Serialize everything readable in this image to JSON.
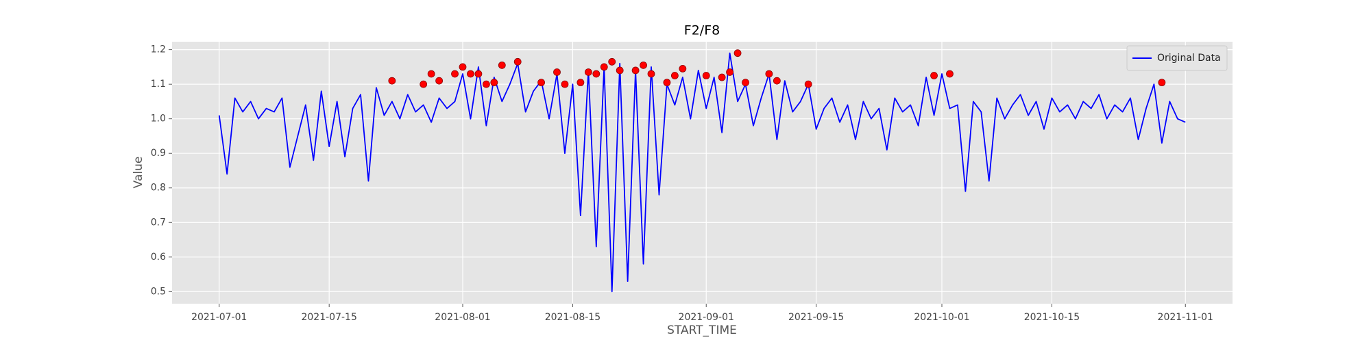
{
  "chart_data": {
    "type": "line",
    "title": "F2/F8",
    "x_label": "START_TIME",
    "y_label": "Value",
    "x": [
      "2021-07-01",
      "2021-07-02",
      "2021-07-03",
      "2021-07-04",
      "2021-07-05",
      "2021-07-06",
      "2021-07-07",
      "2021-07-08",
      "2021-07-09",
      "2021-07-10",
      "2021-07-11",
      "2021-07-12",
      "2021-07-13",
      "2021-07-14",
      "2021-07-15",
      "2021-07-16",
      "2021-07-17",
      "2021-07-18",
      "2021-07-19",
      "2021-07-20",
      "2021-07-21",
      "2021-07-22",
      "2021-07-23",
      "2021-07-24",
      "2021-07-25",
      "2021-07-26",
      "2021-07-27",
      "2021-07-28",
      "2021-07-29",
      "2021-07-30",
      "2021-07-31",
      "2021-08-01",
      "2021-08-02",
      "2021-08-03",
      "2021-08-04",
      "2021-08-05",
      "2021-08-06",
      "2021-08-07",
      "2021-08-08",
      "2021-08-09",
      "2021-08-10",
      "2021-08-11",
      "2021-08-12",
      "2021-08-13",
      "2021-08-14",
      "2021-08-15",
      "2021-08-16",
      "2021-08-17",
      "2021-08-18",
      "2021-08-19",
      "2021-08-20",
      "2021-08-21",
      "2021-08-22",
      "2021-08-23",
      "2021-08-24",
      "2021-08-25",
      "2021-08-26",
      "2021-08-27",
      "2021-08-28",
      "2021-08-29",
      "2021-08-30",
      "2021-08-31",
      "2021-09-01",
      "2021-09-02",
      "2021-09-03",
      "2021-09-04",
      "2021-09-05",
      "2021-09-06",
      "2021-09-07",
      "2021-09-08",
      "2021-09-09",
      "2021-09-10",
      "2021-09-11",
      "2021-09-12",
      "2021-09-13",
      "2021-09-14",
      "2021-09-15",
      "2021-09-16",
      "2021-09-17",
      "2021-09-18",
      "2021-09-19",
      "2021-09-20",
      "2021-09-21",
      "2021-09-22",
      "2021-09-23",
      "2021-09-24",
      "2021-09-25",
      "2021-09-26",
      "2021-09-27",
      "2021-09-28",
      "2021-09-29",
      "2021-09-30",
      "2021-10-01",
      "2021-10-02",
      "2021-10-03",
      "2021-10-04",
      "2021-10-05",
      "2021-10-06",
      "2021-10-07",
      "2021-10-08",
      "2021-10-09",
      "2021-10-10",
      "2021-10-11",
      "2021-10-12",
      "2021-10-13",
      "2021-10-14",
      "2021-10-15",
      "2021-10-16",
      "2021-10-17",
      "2021-10-18",
      "2021-10-19",
      "2021-10-20",
      "2021-10-21",
      "2021-10-22",
      "2021-10-23",
      "2021-10-24",
      "2021-10-25",
      "2021-10-26",
      "2021-10-27",
      "2021-10-28",
      "2021-10-29",
      "2021-10-30",
      "2021-10-31",
      "2021-11-01"
    ],
    "series": [
      {
        "name": "Original Data",
        "color": "#0000ff",
        "values": [
          1.01,
          0.84,
          1.06,
          1.02,
          1.05,
          1.0,
          1.03,
          1.02,
          1.06,
          0.86,
          0.95,
          1.04,
          0.88,
          1.08,
          0.92,
          1.05,
          0.89,
          1.03,
          1.07,
          0.82,
          1.09,
          1.01,
          1.05,
          1.0,
          1.07,
          1.02,
          1.04,
          0.99,
          1.06,
          1.03,
          1.05,
          1.13,
          1.0,
          1.15,
          0.98,
          1.12,
          1.05,
          1.1,
          1.16,
          1.02,
          1.08,
          1.11,
          1.0,
          1.13,
          0.9,
          1.1,
          0.72,
          1.14,
          0.63,
          1.15,
          0.5,
          1.16,
          0.53,
          1.14,
          0.58,
          1.15,
          0.78,
          1.1,
          1.04,
          1.12,
          1.0,
          1.14,
          1.03,
          1.12,
          0.96,
          1.19,
          1.05,
          1.1,
          0.98,
          1.06,
          1.13,
          0.94,
          1.11,
          1.02,
          1.05,
          1.1,
          0.97,
          1.03,
          1.06,
          0.99,
          1.04,
          0.94,
          1.05,
          1.0,
          1.03,
          0.91,
          1.06,
          1.02,
          1.04,
          0.98,
          1.12,
          1.01,
          1.13,
          1.03,
          1.04,
          0.79,
          1.05,
          1.02,
          0.82,
          1.06,
          1.0,
          1.04,
          1.07,
          1.01,
          1.05,
          0.97,
          1.06,
          1.02,
          1.04,
          1.0,
          1.05,
          1.03,
          1.07,
          1.0,
          1.04,
          1.02,
          1.06,
          0.94,
          1.03,
          1.1,
          0.93,
          1.05,
          1.0,
          0.99
        ]
      }
    ],
    "peaks": {
      "color": "#ff0000",
      "x": [
        "2021-07-23",
        "2021-07-27",
        "2021-07-28",
        "2021-07-29",
        "2021-07-31",
        "2021-08-01",
        "2021-08-02",
        "2021-08-03",
        "2021-08-04",
        "2021-08-05",
        "2021-08-06",
        "2021-08-08",
        "2021-08-11",
        "2021-08-13",
        "2021-08-14",
        "2021-08-16",
        "2021-08-17",
        "2021-08-18",
        "2021-08-19",
        "2021-08-20",
        "2021-08-21",
        "2021-08-23",
        "2021-08-24",
        "2021-08-25",
        "2021-08-27",
        "2021-08-28",
        "2021-08-29",
        "2021-09-01",
        "2021-09-03",
        "2021-09-04",
        "2021-09-05",
        "2021-09-06",
        "2021-09-09",
        "2021-09-10",
        "2021-09-14",
        "2021-09-30",
        "2021-10-02",
        "2021-10-29"
      ],
      "values": [
        1.11,
        1.1,
        1.13,
        1.11,
        1.13,
        1.15,
        1.13,
        1.13,
        1.1,
        1.105,
        1.155,
        1.165,
        1.105,
        1.135,
        1.1,
        1.105,
        1.135,
        1.13,
        1.15,
        1.165,
        1.14,
        1.14,
        1.155,
        1.13,
        1.105,
        1.125,
        1.145,
        1.125,
        1.12,
        1.135,
        1.19,
        1.105,
        1.13,
        1.11,
        1.1,
        1.125,
        1.13,
        1.105
      ]
    },
    "xlim": [
      "2021-06-25",
      "2021-11-07"
    ],
    "xticks": [
      "2021-07-01",
      "2021-07-15",
      "2021-08-01",
      "2021-08-15",
      "2021-09-01",
      "2021-09-15",
      "2021-10-01",
      "2021-10-15",
      "2021-11-01"
    ],
    "ylim": [
      0.465,
      1.223
    ],
    "yticks": [
      0.5,
      0.6,
      0.7,
      0.8,
      0.9,
      {
        "value": 1,
        "label": "1.0"
      },
      1.1,
      1.2
    ],
    "grid": true,
    "legend": "upper right"
  }
}
